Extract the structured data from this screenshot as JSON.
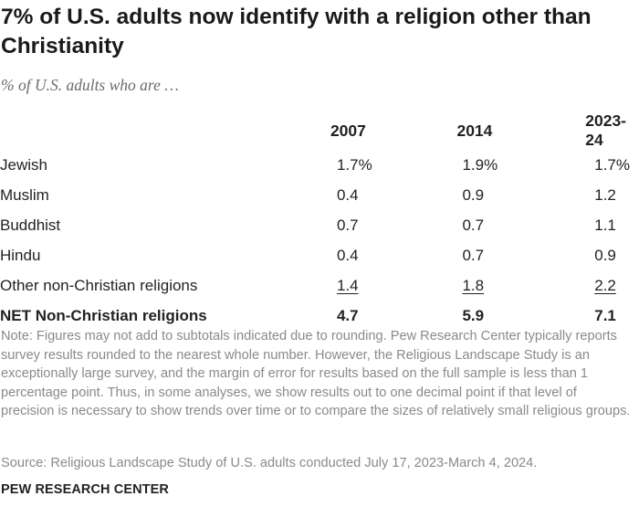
{
  "title": "7% of U.S. adults now identify with a religion other than Christianity",
  "subtitle": "% of U.S. adults who are …",
  "chart_data": {
    "type": "table",
    "columns": [
      "2007",
      "2014",
      "2023-24"
    ],
    "rows": [
      {
        "label": "Jewish",
        "values": [
          "1.7%",
          "1.9%",
          "1.7%"
        ]
      },
      {
        "label": "Muslim",
        "values": [
          "0.4",
          "0.9",
          "1.2"
        ]
      },
      {
        "label": "Buddhist",
        "values": [
          "0.7",
          "0.7",
          "1.1"
        ]
      },
      {
        "label": "Hindu",
        "values": [
          "0.4",
          "0.7",
          "0.9"
        ]
      },
      {
        "label": "Other non-Christian religions",
        "values": [
          "1.4",
          "1.8",
          "2.2"
        ]
      },
      {
        "label": "NET Non-Christian religions",
        "values": [
          "4.7",
          "5.9",
          "7.1"
        ]
      }
    ]
  },
  "note": "Note: Figures may not add to subtotals indicated due to rounding. Pew Research Center typically reports survey results rounded to the nearest whole number. However, the Religious Landscape Study is an exceptionally large survey, and the margin of error for results based on the full sample is less than 1 percentage point. Thus, in some analyses, we show results out to one decimal point if that level of precision is necessary to show trends over time or to compare the sizes of relatively small religious groups.",
  "source": "Source: Religious Landscape Study of U.S. adults conducted July 17, 2023-March 4, 2024.",
  "brand": "PEW RESEARCH CENTER"
}
